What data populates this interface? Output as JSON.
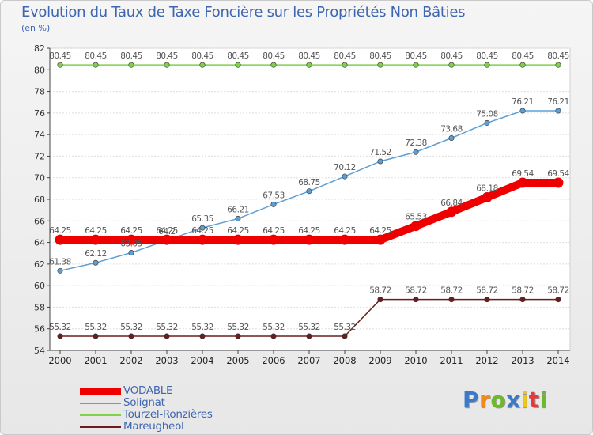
{
  "chart_data": {
    "type": "line",
    "title": "Evolution du Taux de Taxe Foncière sur les Propriétés Non Bâties",
    "ylabel": "(en %)",
    "xlabel": "",
    "ylim": [
      54,
      82
    ],
    "yticks": [
      54,
      56,
      58,
      60,
      62,
      64,
      66,
      68,
      70,
      72,
      74,
      76,
      78,
      80,
      82
    ],
    "categories": [
      "2000",
      "2001",
      "2002",
      "2003",
      "2004",
      "2005",
      "2006",
      "2007",
      "2008",
      "2009",
      "2010",
      "2011",
      "2012",
      "2013",
      "2014"
    ],
    "grid": true,
    "legend_position": "bottom-left",
    "series": [
      {
        "name": "VODABLE",
        "color": "#ee0000",
        "emphasis": true,
        "values": [
          64.25,
          64.25,
          64.25,
          64.25,
          64.25,
          64.25,
          64.25,
          64.25,
          64.25,
          64.25,
          65.53,
          66.84,
          68.18,
          69.54,
          69.54
        ],
        "labels": [
          "64.25",
          "64.25",
          "64.25",
          "64.25",
          "64.25",
          "64.25",
          "64.25",
          "64.25",
          "64.25",
          "64.25",
          "65.53",
          "66.84",
          "68.18",
          "69.54",
          "69.54"
        ]
      },
      {
        "name": "Solignat",
        "color": "#5d9fd5",
        "values": [
          61.38,
          62.12,
          63.05,
          64.2,
          65.35,
          66.21,
          67.53,
          68.75,
          70.12,
          71.52,
          72.38,
          73.68,
          75.08,
          76.21,
          76.21
        ],
        "labels": [
          "61.38",
          "62.12",
          "63.05",
          "64.2",
          "65.35",
          "66.21",
          "67.53",
          "68.75",
          "70.12",
          "71.52",
          "72.38",
          "73.68",
          "75.08",
          "76.21",
          "76.21"
        ]
      },
      {
        "name": "Tourzel-Ronzières",
        "color": "#7ed24a",
        "values": [
          80.45,
          80.45,
          80.45,
          80.45,
          80.45,
          80.45,
          80.45,
          80.45,
          80.45,
          80.45,
          80.45,
          80.45,
          80.45,
          80.45,
          80.45
        ],
        "labels": [
          "80.45",
          "80.45",
          "80.45",
          "80.45",
          "80.45",
          "80.45",
          "80.45",
          "80.45",
          "80.45",
          "80.45",
          "80.45",
          "80.45",
          "80.45",
          "80.45",
          "80.45"
        ]
      },
      {
        "name": "Mareugheol",
        "color": "#6b1d1d",
        "values": [
          55.32,
          55.32,
          55.32,
          55.32,
          55.32,
          55.32,
          55.32,
          55.32,
          55.32,
          58.72,
          58.72,
          58.72,
          58.72,
          58.72,
          58.72
        ],
        "labels": [
          "55.32",
          "55.32",
          "55.32",
          "55.32",
          "55.32",
          "55.32",
          "55.32",
          "55.32",
          "55.32",
          "58.72",
          "58.72",
          "58.72",
          "58.72",
          "58.72",
          "58.72"
        ]
      }
    ]
  },
  "brand": {
    "letters": [
      "P",
      "r",
      "o",
      "x",
      "i",
      "t",
      "i"
    ],
    "colors": [
      "#3b79c9",
      "#f08a1c",
      "#6cba2b",
      "#3b79c9",
      "#f0c419",
      "#e23b3b",
      "#6cba2b"
    ]
  }
}
